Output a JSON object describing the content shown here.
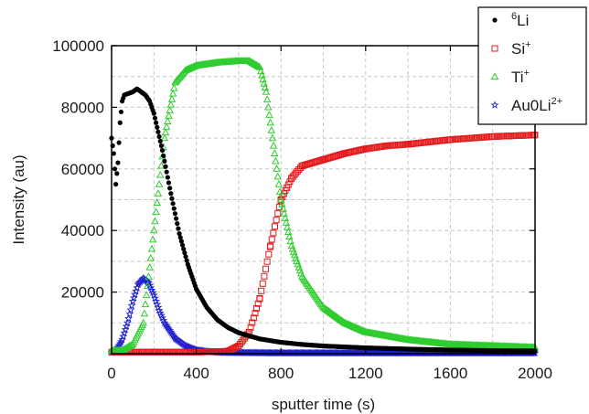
{
  "chart_data": {
    "type": "scatter",
    "title": "",
    "xlabel": "sputter time (s)",
    "ylabel": "Intensity (au)",
    "xlim": [
      0,
      2000
    ],
    "ylim": [
      0,
      100000
    ],
    "xticks": [
      0,
      400,
      800,
      1200,
      1600,
      2000
    ],
    "xtick_labels": [
      "0",
      "400",
      "800",
      "1200",
      "1600",
      "2000"
    ],
    "yticks": [
      20000,
      40000,
      60000,
      80000,
      100000
    ],
    "ytick_labels": [
      "20000",
      "40000",
      "60000",
      "80000",
      "100000"
    ],
    "grid": true,
    "legend_position": "top-right",
    "series": [
      {
        "name": "6Li",
        "label_main": "Li",
        "label_pre_sup": "6",
        "label_post_sup": "",
        "color": "#000000",
        "marker": "circle-filled",
        "x": [
          0,
          10,
          20,
          30,
          40,
          50,
          60,
          80,
          100,
          120,
          140,
          160,
          180,
          200,
          240,
          280,
          320,
          360,
          400,
          450,
          500,
          550,
          600,
          700,
          800,
          900,
          1000,
          1200,
          1400,
          1600,
          1800,
          2000
        ],
        "y": [
          70000,
          65000,
          55000,
          62000,
          75000,
          82000,
          84000,
          84500,
          85000,
          86000,
          85000,
          84000,
          82000,
          78000,
          66000,
          52000,
          39000,
          29000,
          21000,
          15000,
          11000,
          8500,
          6800,
          4800,
          3700,
          3000,
          2500,
          1900,
          1500,
          1200,
          1000,
          900
        ]
      },
      {
        "name": "Si+",
        "label_main": "Si",
        "label_pre_sup": "",
        "label_post_sup": "+",
        "color": "#e41a1c",
        "marker": "square-open",
        "x": [
          0,
          400,
          550,
          600,
          650,
          700,
          750,
          800,
          850,
          900,
          1000,
          1100,
          1200,
          1300,
          1400,
          1600,
          1800,
          2000
        ],
        "y": [
          500,
          500,
          800,
          2500,
          7000,
          18000,
          35000,
          50000,
          57000,
          61000,
          63000,
          65000,
          66500,
          67500,
          68000,
          69500,
          70500,
          71000
        ]
      },
      {
        "name": "Ti+",
        "label_main": "Ti",
        "label_pre_sup": "",
        "label_post_sup": "+",
        "color": "#2ecc2e",
        "marker": "triangle-open",
        "x": [
          0,
          50,
          100,
          150,
          200,
          250,
          300,
          350,
          400,
          450,
          500,
          600,
          650,
          700,
          730,
          760,
          800,
          850,
          900,
          1000,
          1100,
          1200,
          1400,
          1600,
          1800,
          2000
        ],
        "y": [
          1000,
          1000,
          3000,
          10000,
          40000,
          70000,
          88000,
          92000,
          93500,
          94000,
          94500,
          95000,
          95000,
          93000,
          85000,
          70000,
          50000,
          35000,
          25000,
          15000,
          10000,
          7000,
          4500,
          3000,
          2500,
          2000
        ]
      },
      {
        "name": "Au0Li2+",
        "label_main": "Au0Li",
        "label_pre_sup": "",
        "label_post_sup": "2+",
        "color": "#1f1fcf",
        "marker": "star-open",
        "x": [
          0,
          25,
          50,
          75,
          100,
          125,
          150,
          175,
          200,
          225,
          250,
          300,
          350,
          400,
          450,
          500,
          600,
          800,
          1000,
          1400,
          2000
        ],
        "y": [
          300,
          1500,
          4500,
          10000,
          17000,
          22500,
          24500,
          23000,
          19000,
          14000,
          10000,
          5000,
          2500,
          1200,
          700,
          400,
          300,
          200,
          200,
          200,
          200
        ]
      }
    ]
  }
}
